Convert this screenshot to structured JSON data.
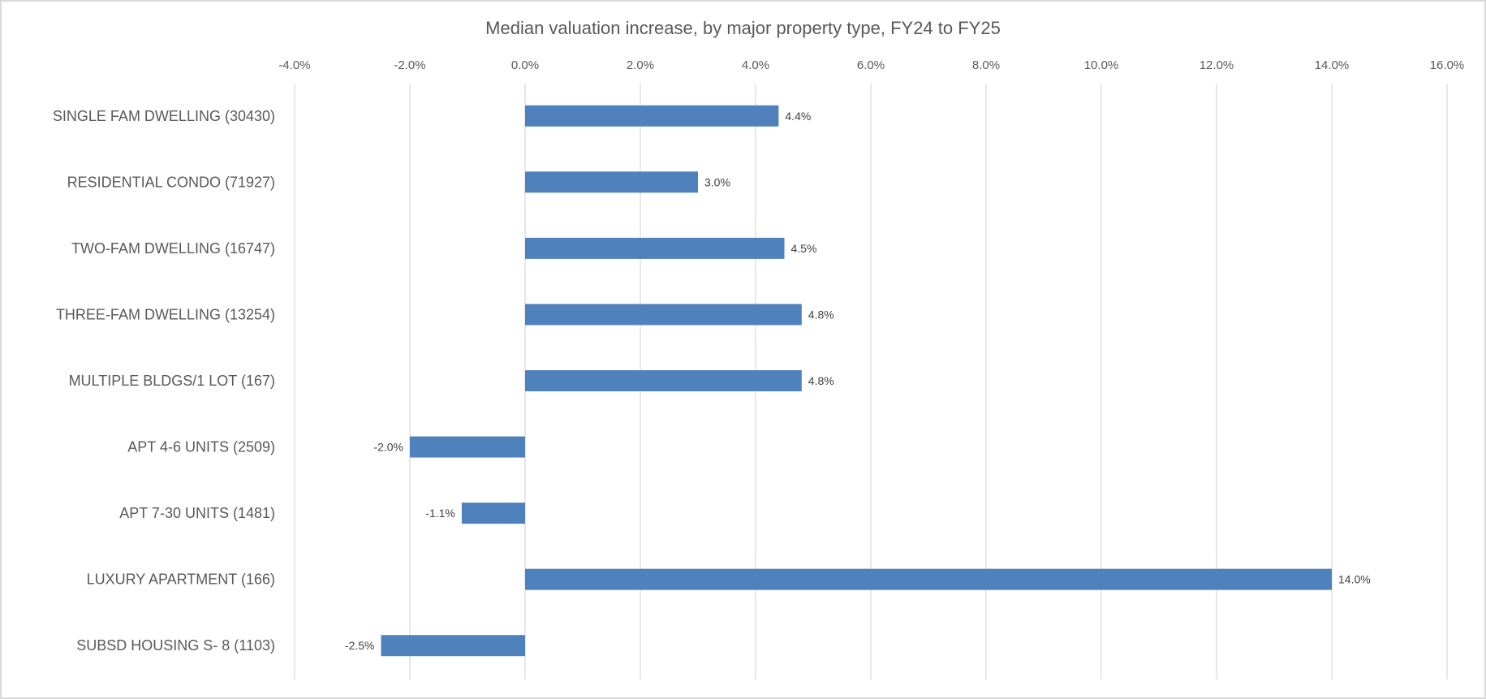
{
  "chart_data": {
    "type": "bar",
    "orientation": "horizontal",
    "title": "Median valuation increase, by major property type, FY24 to FY25",
    "categories": [
      "SINGLE FAM DWELLING (30430)",
      "RESIDENTIAL CONDO (71927)",
      "TWO-FAM DWELLING (16747)",
      "THREE-FAM DWELLING (13254)",
      "MULTIPLE BLDGS/1 LOT (167)",
      "APT 4-6 UNITS (2509)",
      "APT 7-30 UNITS (1481)",
      "LUXURY APARTMENT (166)",
      "SUBSD HOUSING S- 8 (1103)"
    ],
    "values": [
      4.4,
      3.0,
      4.5,
      4.8,
      4.8,
      -2.0,
      -1.1,
      14.0,
      -2.5
    ],
    "data_labels": [
      "4.4%",
      "3.0%",
      "4.5%",
      "4.8%",
      "4.8%",
      "-2.0%",
      "-1.1%",
      "14.0%",
      "-2.5%"
    ],
    "xlim": [
      -4,
      16
    ],
    "x_ticks": [
      -4,
      -2,
      0,
      2,
      4,
      6,
      8,
      10,
      12,
      14,
      16
    ],
    "x_tick_labels": [
      "-4.0%",
      "-2.0%",
      "0.0%",
      "2.0%",
      "4.0%",
      "6.0%",
      "8.0%",
      "10.0%",
      "12.0%",
      "14.0%",
      "16.0%"
    ],
    "x_axis_position": "top",
    "grid": true,
    "legend": "none",
    "xlabel": "",
    "ylabel": "",
    "colors": {
      "bar": "#4f81bd",
      "grid": "#d9d9d9",
      "text": "#595959"
    }
  }
}
